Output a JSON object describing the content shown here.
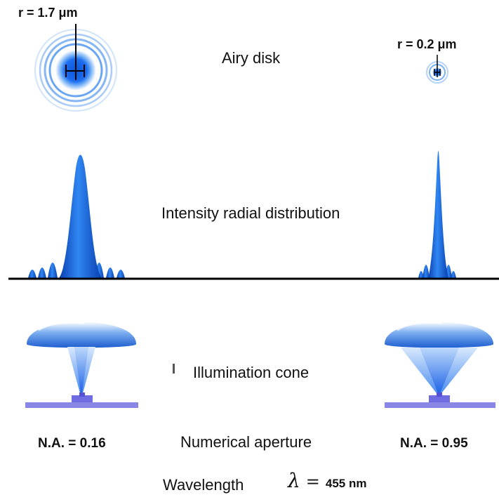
{
  "labels": {
    "airy_disk": "Airy disk",
    "intensity": "Intensity radial distribution",
    "illumination": "Illumination cone",
    "numerical_aperture": "Numerical aperture",
    "wavelength": "Wavelength"
  },
  "left": {
    "radius_label": "r = 1.7 μm",
    "na_label": "N.A. = 0.16"
  },
  "right": {
    "radius_label": "r = 0.2 μm",
    "na_label": "N.A. = 0.95"
  },
  "wavelength": {
    "symbol": "λ",
    "equals": "=",
    "value": "455 nm"
  },
  "colors": {
    "blue_dark": "#0a48c8",
    "blue_mid": "#2f7ff0",
    "blue_light": "#9fc6f6",
    "stage": "#8a86e6",
    "baseline": "#000000"
  }
}
